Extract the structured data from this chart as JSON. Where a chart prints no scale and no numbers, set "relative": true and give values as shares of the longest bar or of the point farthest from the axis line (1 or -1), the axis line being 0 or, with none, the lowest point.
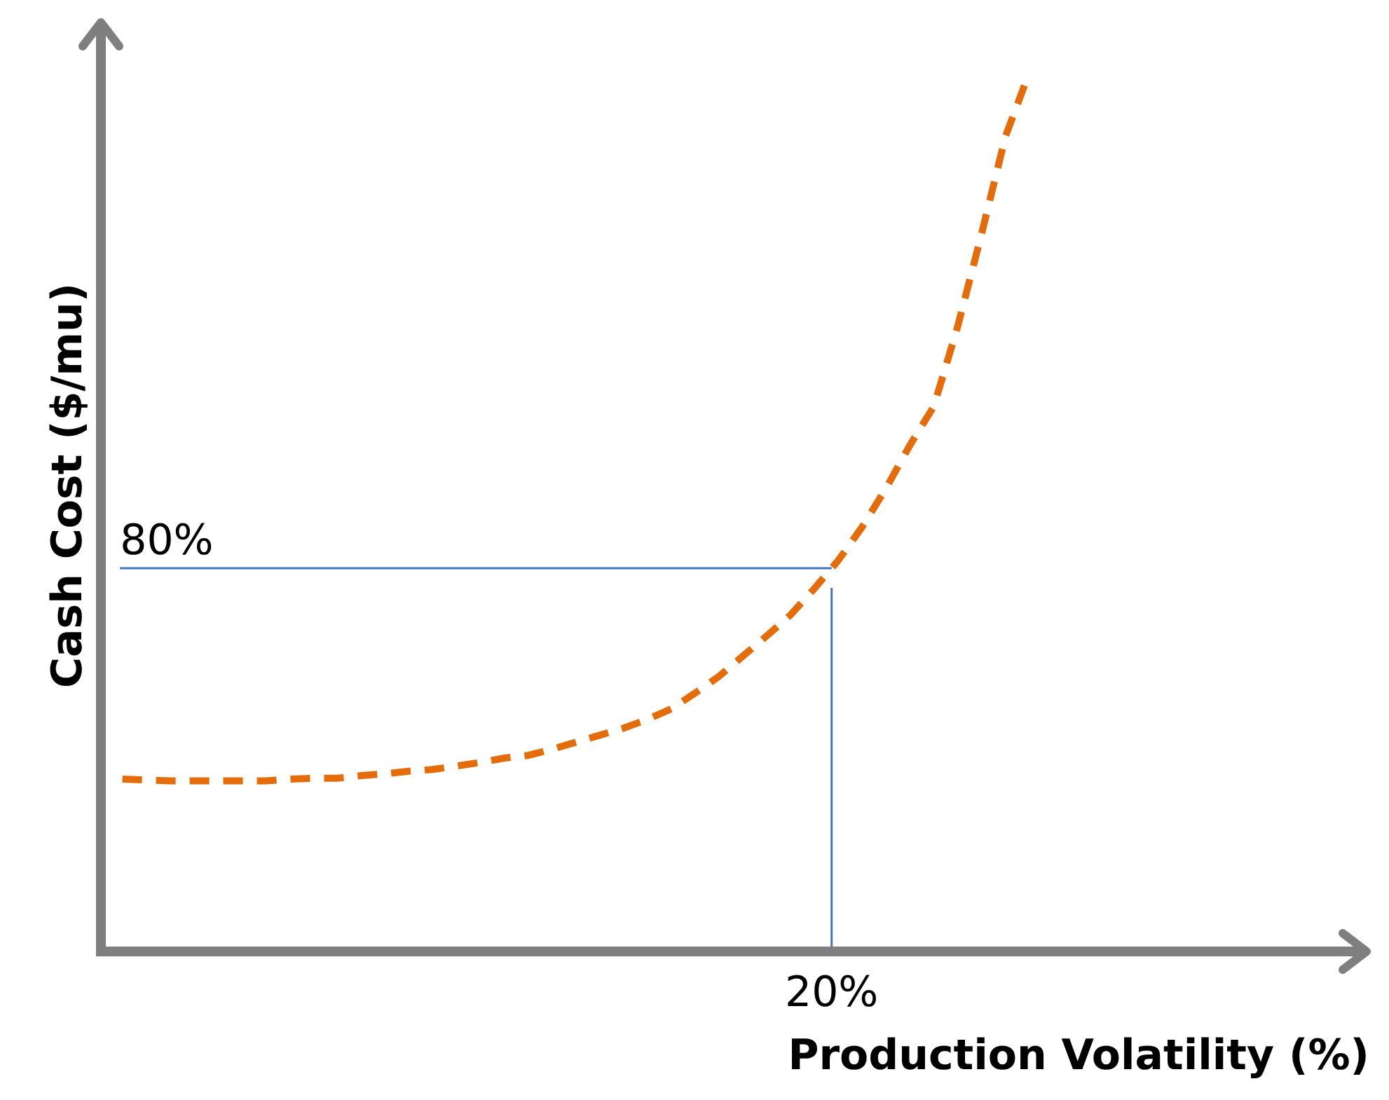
{
  "chart_data": {
    "type": "line",
    "relative": true,
    "xlabel": "Production Volatility (%)",
    "ylabel": "Cash Cost ($/mu)",
    "categories": [
      null,
      null,
      null,
      null,
      null,
      null,
      null,
      null,
      null,
      null,
      null,
      null,
      null,
      null,
      null,
      null,
      null,
      null,
      null,
      null,
      null,
      null,
      null,
      null,
      null,
      null,
      null,
      null,
      null,
      null,
      null,
      null,
      null,
      null,
      null,
      null,
      null,
      null,
      null
    ],
    "grid": false,
    "legend": false,
    "marker": "none",
    "series": [
      {
        "color": "#e46c0a",
        "line_style": "dashed",
        "values": [
          0.196,
          0.195,
          0.194,
          0.194,
          0.194,
          0.194,
          0.194,
          0.196,
          0.197,
          0.197,
          0.2,
          0.202,
          0.205,
          0.207,
          0.211,
          0.215,
          0.22,
          0.223,
          0.23,
          0.238,
          0.246,
          0.254,
          0.264,
          0.276,
          0.294,
          0.313,
          0.336,
          0.359,
          0.383,
          0.413,
          0.445,
          0.483,
          0.527,
          0.576,
          0.62,
          0.711,
          0.816,
          0.927,
          1
        ]
      }
    ],
    "ref_lines": [
      {
        "axis": "y",
        "value": 0.436,
        "color": "#4472c4"
      }
    ],
    "annotations": [
      {
        "text": "80%",
        "y": 0.436
      },
      "20%"
    ]
  }
}
